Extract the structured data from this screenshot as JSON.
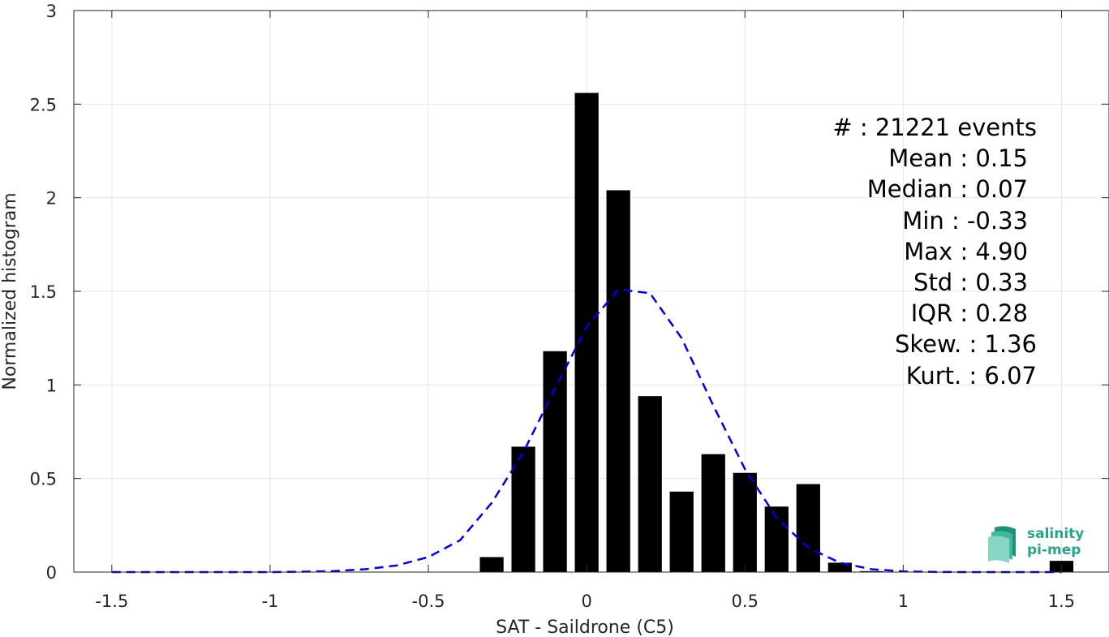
{
  "chart_data": {
    "type": "bar",
    "xlabel": "SAT - Saildrone (C5)",
    "ylabel": "Normalized histogram",
    "xlim": [
      -1.62,
      1.65
    ],
    "ylim": [
      0,
      3
    ],
    "xticks": [
      -1.5,
      -1,
      -0.5,
      0,
      0.5,
      1,
      1.5
    ],
    "xtick_labels": [
      "-1.5",
      "-1",
      "-0.5",
      "0",
      "0.5",
      "1",
      "1.5"
    ],
    "yticks": [
      0,
      0.5,
      1,
      1.5,
      2,
      2.5,
      3
    ],
    "ytick_labels": [
      "0",
      "0.5",
      "1",
      "1.5",
      "2",
      "2.5",
      "3"
    ],
    "grid": true,
    "bar_color": "#000000",
    "bar_width": 0.075,
    "bars": {
      "x": [
        -0.3,
        -0.2,
        -0.1,
        0,
        0.1,
        0.2,
        0.3,
        0.4,
        0.5,
        0.6,
        0.7,
        0.8,
        0.9,
        1.5
      ],
      "values": [
        0.08,
        0.67,
        1.18,
        2.56,
        2.04,
        0.94,
        0.43,
        0.63,
        0.53,
        0.35,
        0.47,
        0.05,
        0.005,
        0.06
      ]
    },
    "fit_curve": {
      "color": "#0000dd",
      "style": "dashed",
      "x": [
        -1.5,
        -1.4,
        -1.3,
        -1.2,
        -1.1,
        -1.0,
        -0.9,
        -0.8,
        -0.7,
        -0.6,
        -0.5,
        -0.4,
        -0.3,
        -0.2,
        -0.1,
        0.0,
        0.1,
        0.2,
        0.3,
        0.4,
        0.5,
        0.6,
        0.7,
        0.8,
        0.9,
        1.0,
        1.1,
        1.2,
        1.3,
        1.4,
        1.5
      ],
      "y": [
        0,
        0,
        0,
        0,
        0,
        0,
        0.002,
        0.005,
        0.015,
        0.035,
        0.08,
        0.17,
        0.37,
        0.64,
        0.98,
        1.31,
        1.51,
        1.49,
        1.25,
        0.89,
        0.55,
        0.29,
        0.13,
        0.05,
        0.015,
        0.004,
        0.001,
        0,
        0,
        0,
        0
      ]
    }
  },
  "stats": [
    "#  : 21221 events",
    "Mean : 0.15",
    "Median : 0.07",
    "Min : -0.33",
    "Max : 4.90",
    "Std : 0.33",
    "IQR : 0.28",
    "Skew. : 1.36",
    "Kurt. : 6.07"
  ],
  "logo": {
    "line1": "salinity",
    "line2": "pi-mep",
    "color": "#2aa38e"
  }
}
